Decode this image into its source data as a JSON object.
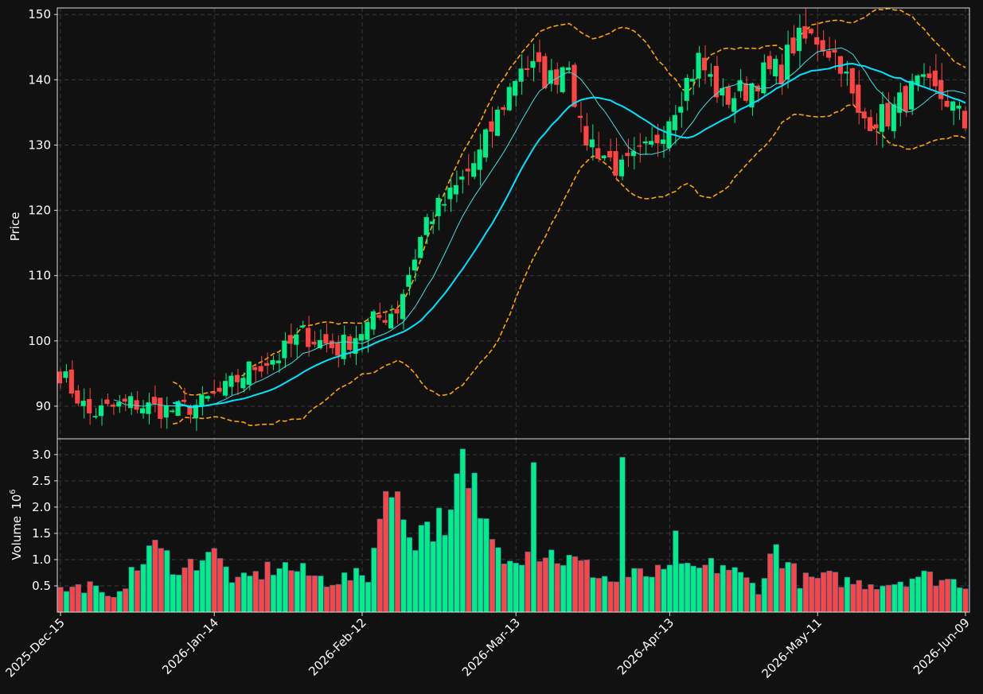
{
  "chart_data": {
    "type": "candlestick",
    "colors": {
      "background": "#111111",
      "up": "#00ee88",
      "down": "#ff4444",
      "ma_fast": "#40e0e0",
      "ma_slow": "#00e5ff",
      "bollinger": "#ffa500",
      "grid": "#3a3a3a",
      "text": "#ffffff"
    },
    "start_date": "2025-12-15",
    "x_ticks": [
      "2025-Dec-15",
      "2026-Jan-14",
      "2026-Feb-12",
      "2026-Mar-13",
      "2026-Apr-13",
      "2026-May-11",
      "2026-Jun-09"
    ],
    "price_panel": {
      "ylabel": "Price",
      "ylim": [
        85,
        151
      ],
      "yticks": [
        "90",
        "100",
        "110",
        "120",
        "130",
        "140",
        "150"
      ],
      "grid": true
    },
    "volume_panel": {
      "ylabel": "Volume",
      "ylabel_exp": "10",
      "ylabel_sup": "6",
      "ylim": [
        0,
        3.3
      ],
      "yticks": [
        "0.5",
        "1.0",
        "1.5",
        "2.0",
        "2.5",
        "3.0"
      ],
      "grid": true
    },
    "ohlc_anchors": [
      [
        0,
        95.2
      ],
      [
        5,
        88.8
      ],
      [
        12,
        90.5
      ],
      [
        17,
        89.5
      ],
      [
        20,
        89.4
      ],
      [
        24,
        90.4
      ],
      [
        28,
        92.5
      ],
      [
        32,
        95.7
      ],
      [
        37,
        97.7
      ],
      [
        41,
        101.0
      ],
      [
        47,
        98.8
      ],
      [
        53,
        103.0
      ],
      [
        57,
        105.0
      ],
      [
        62,
        118.5
      ],
      [
        66,
        122.0
      ],
      [
        71,
        128.5
      ],
      [
        78,
        142.5
      ],
      [
        83,
        140.0
      ],
      [
        86,
        143.5
      ],
      [
        88,
        132.0
      ],
      [
        95,
        126.0
      ],
      [
        100,
        129.5
      ],
      [
        104,
        136.5
      ],
      [
        108,
        143.0
      ],
      [
        112,
        137.0
      ],
      [
        116,
        138.5
      ],
      [
        118,
        140.5
      ],
      [
        122,
        141.5
      ],
      [
        124,
        145.5
      ],
      [
        128,
        146.5
      ],
      [
        132,
        143.0
      ],
      [
        135,
        134.0
      ],
      [
        140,
        134.5
      ],
      [
        145,
        139.0
      ],
      [
        150,
        137.0
      ],
      [
        153,
        133.0
      ]
    ],
    "volume_anchors": [
      [
        0,
        0.42
      ],
      [
        5,
        0.5
      ],
      [
        8,
        0.25
      ],
      [
        13,
        0.8
      ],
      [
        15,
        1.25
      ],
      [
        21,
        0.8
      ],
      [
        25,
        1.2
      ],
      [
        30,
        0.55
      ],
      [
        37,
        0.9
      ],
      [
        45,
        0.6
      ],
      [
        52,
        0.7
      ],
      [
        55,
        2.3
      ],
      [
        60,
        1.5
      ],
      [
        64,
        1.7
      ],
      [
        68,
        2.6
      ],
      [
        70,
        1.75
      ],
      [
        72,
        1.3
      ],
      [
        78,
        1.15
      ],
      [
        83,
        1.1
      ],
      [
        88,
        0.9
      ],
      [
        94,
        0.55
      ],
      [
        97,
        0.7
      ],
      [
        105,
        0.75
      ],
      [
        112,
        0.9
      ],
      [
        118,
        0.45
      ],
      [
        121,
        1.25
      ],
      [
        125,
        0.6
      ],
      [
        130,
        0.65
      ],
      [
        135,
        0.55
      ],
      [
        140,
        0.55
      ],
      [
        145,
        0.7
      ],
      [
        153,
        0.55
      ]
    ],
    "volume_spikes": [
      [
        55,
        2.3
      ],
      [
        62,
        1.72
      ],
      [
        66,
        1.95
      ],
      [
        70,
        2.65
      ],
      [
        72,
        1.78
      ],
      [
        80,
        2.85
      ],
      [
        95,
        2.95
      ],
      [
        104,
        1.55
      ]
    ]
  }
}
